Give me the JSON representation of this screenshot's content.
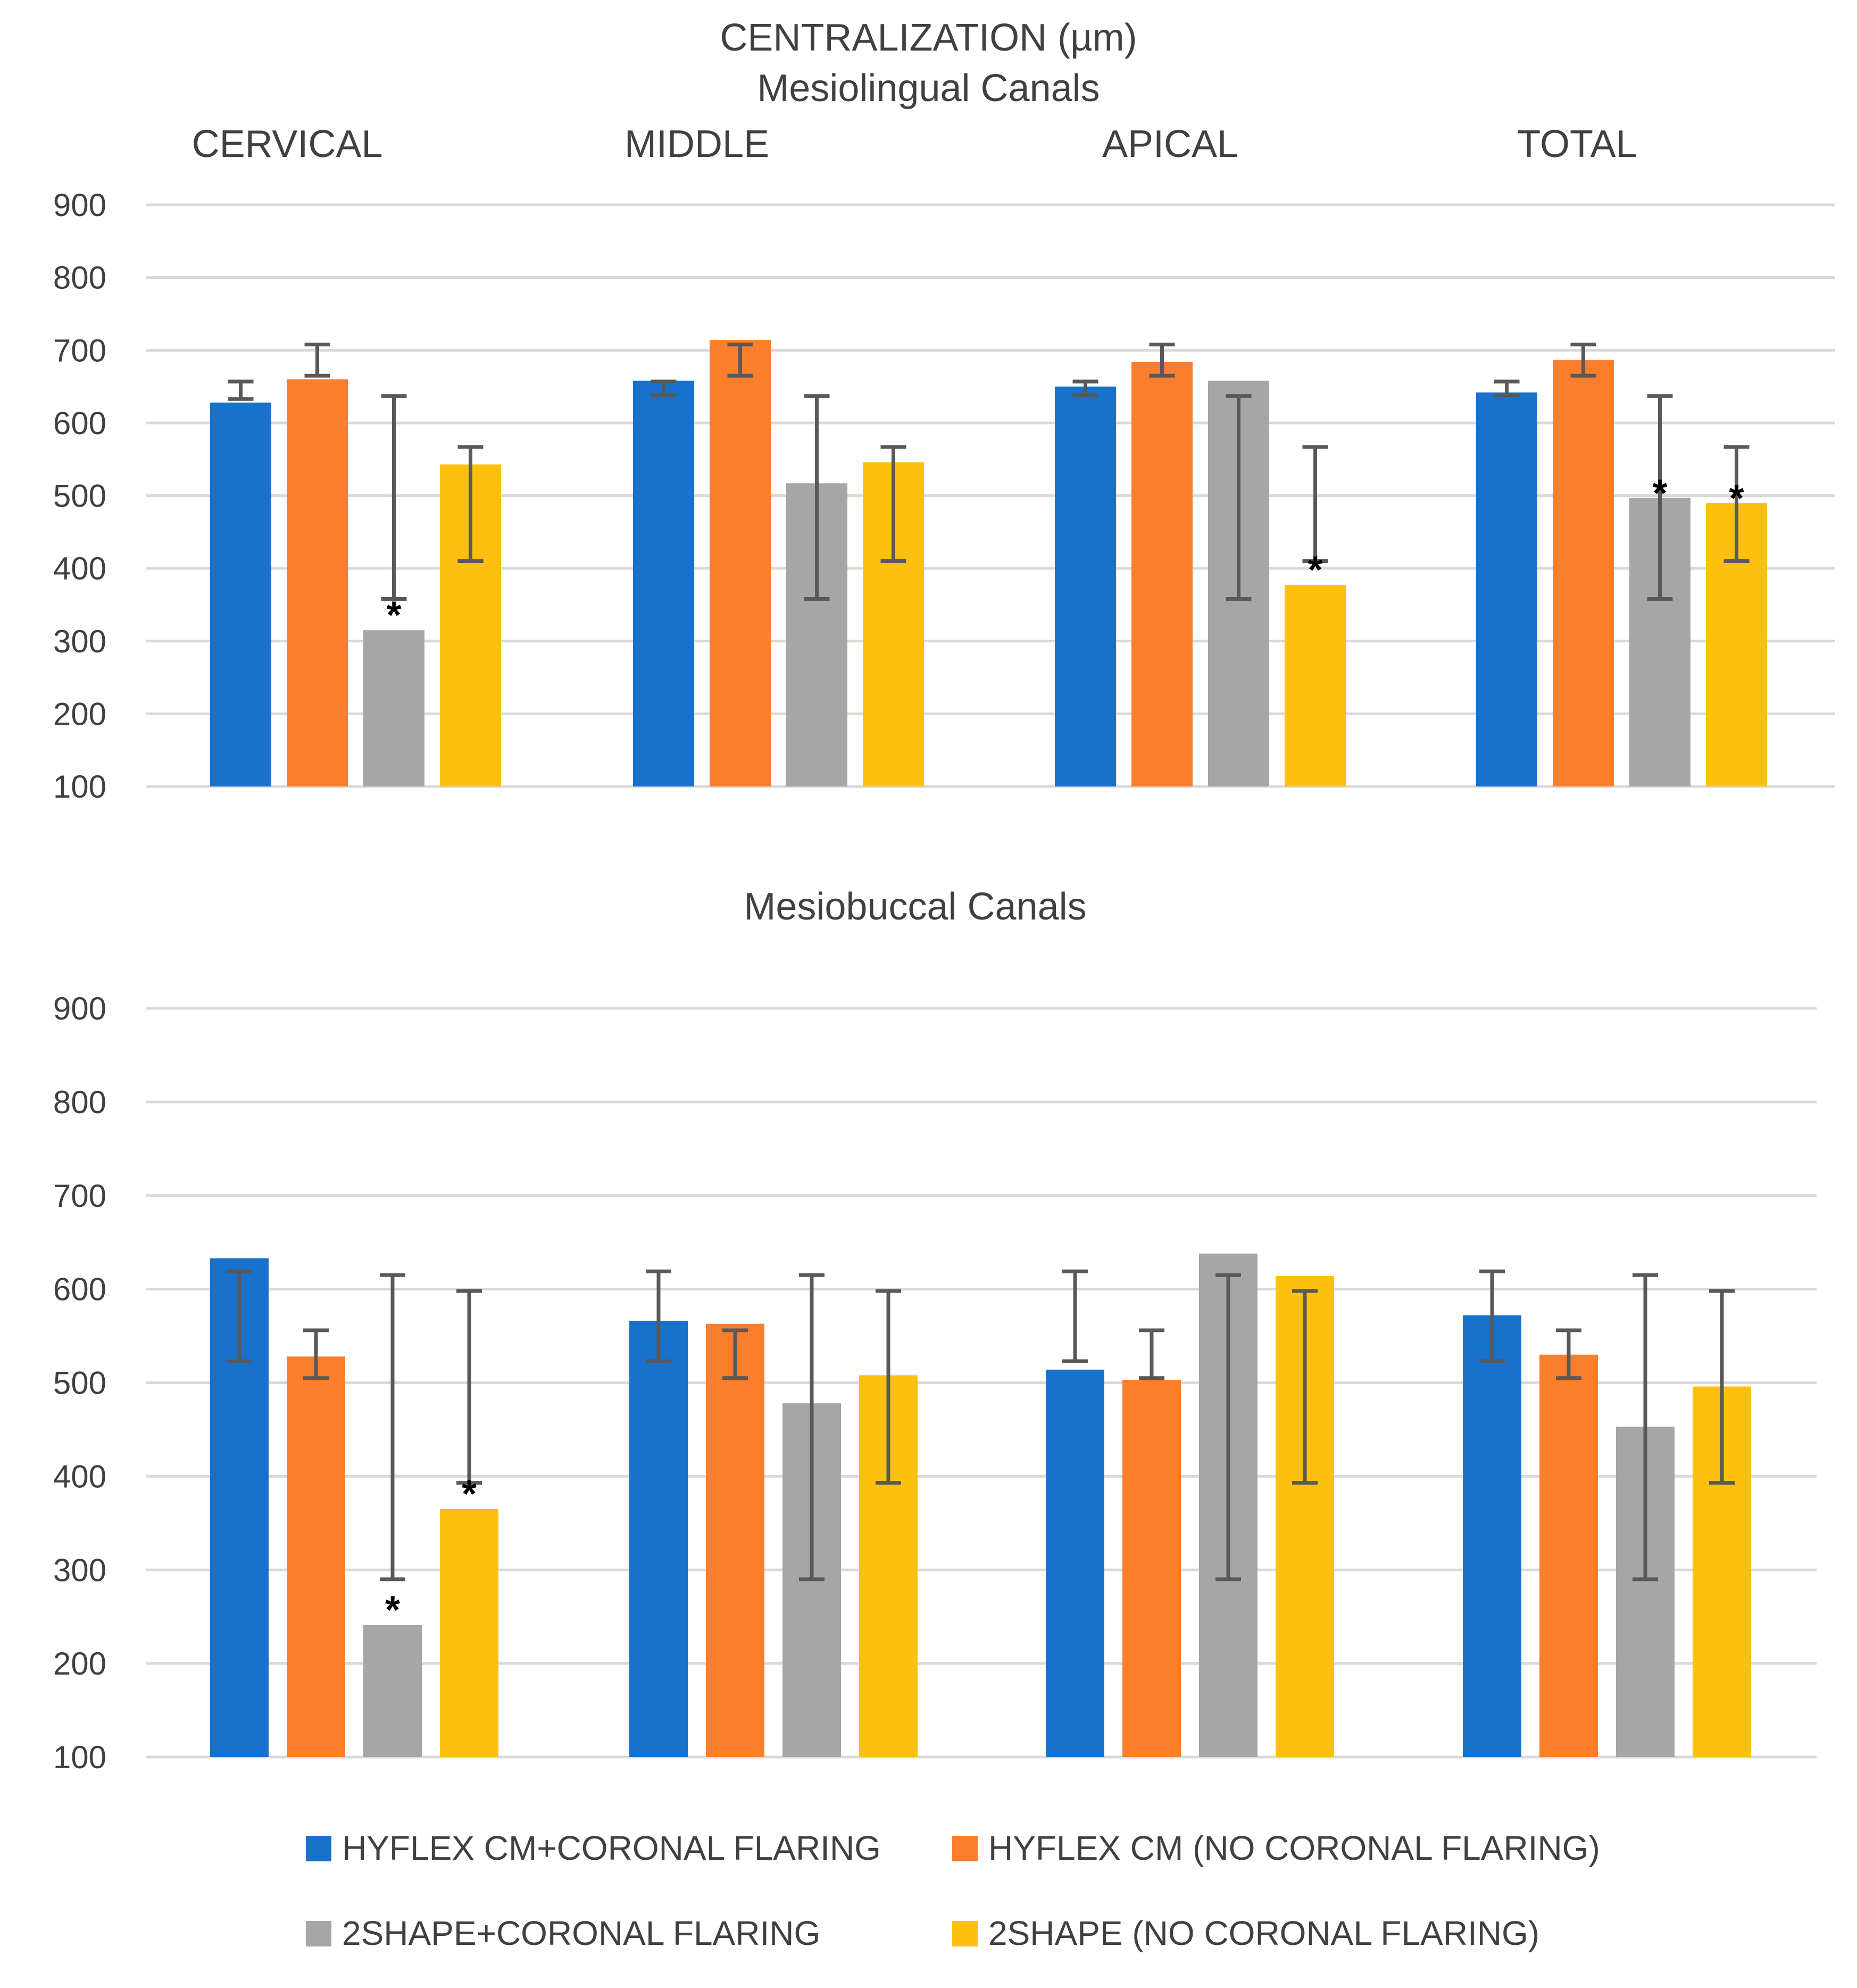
{
  "chart_data": {
    "type": "bar",
    "title": "CENTRALIZATION (µm)",
    "region_labels": [
      "CERVICAL",
      "MIDDLE",
      "APICAL",
      "TOTAL"
    ],
    "y_ticks": [
      100,
      200,
      300,
      400,
      500,
      600,
      700,
      800,
      900
    ],
    "ylim": [
      100,
      900
    ],
    "grid": true,
    "series": [
      {
        "name": "HYFLEX CM+CORONAL FLARING",
        "color": "#1872CB"
      },
      {
        "name": "HYFLEX CM (NO CORONAL FLARING)",
        "color": "#FA7E2B"
      },
      {
        "name": "2SHAPE+CORONAL FLARING",
        "color": "#A6A6A6"
      },
      {
        "name": "2SHAPE (NO CORONAL FLARING)",
        "color": "#FDC00F"
      }
    ],
    "legend_position": "bottom",
    "marker_symbol": "*",
    "panels": [
      {
        "title": "Mesiolingual Canals",
        "categories": [
          "CERVICAL",
          "MIDDLE",
          "APICAL",
          "TOTAL"
        ],
        "values": [
          [
            628,
            660,
            315,
            543
          ],
          [
            658,
            714,
            517,
            546
          ],
          [
            650,
            684,
            658,
            377
          ],
          [
            642,
            687,
            497,
            490
          ]
        ],
        "error_low": [
          [
            633,
            665,
            358,
            410
          ],
          [
            638,
            665,
            358,
            410
          ],
          [
            638,
            665,
            358,
            410
          ],
          [
            638,
            665,
            358,
            410
          ]
        ],
        "error_high": [
          [
            657,
            708,
            637,
            567
          ],
          [
            657,
            708,
            637,
            567
          ],
          [
            657,
            708,
            637,
            567
          ],
          [
            657,
            708,
            637,
            567
          ]
        ],
        "significant": [
          [
            false,
            false,
            true,
            false
          ],
          [
            false,
            false,
            false,
            false
          ],
          [
            false,
            false,
            false,
            true
          ],
          [
            false,
            false,
            true,
            true
          ]
        ]
      },
      {
        "title": "Mesiobuccal Canals",
        "categories": [
          "CERVICAL",
          "MIDDLE",
          "APICAL",
          "TOTAL"
        ],
        "values": [
          [
            633,
            528,
            241,
            365
          ],
          [
            566,
            563,
            478,
            508
          ],
          [
            514,
            503,
            638,
            614
          ],
          [
            572,
            530,
            453,
            496
          ]
        ],
        "error_low": [
          [
            523,
            505,
            290,
            393
          ],
          [
            523,
            505,
            290,
            393
          ],
          [
            523,
            505,
            290,
            393
          ],
          [
            523,
            505,
            290,
            393
          ]
        ],
        "error_high": [
          [
            619,
            556,
            615,
            598
          ],
          [
            619,
            556,
            615,
            598
          ],
          [
            619,
            556,
            615,
            598
          ],
          [
            619,
            556,
            615,
            598
          ]
        ],
        "significant": [
          [
            false,
            false,
            true,
            true
          ],
          [
            false,
            false,
            false,
            false
          ],
          [
            false,
            false,
            false,
            false
          ],
          [
            false,
            false,
            false,
            false
          ]
        ]
      }
    ]
  }
}
